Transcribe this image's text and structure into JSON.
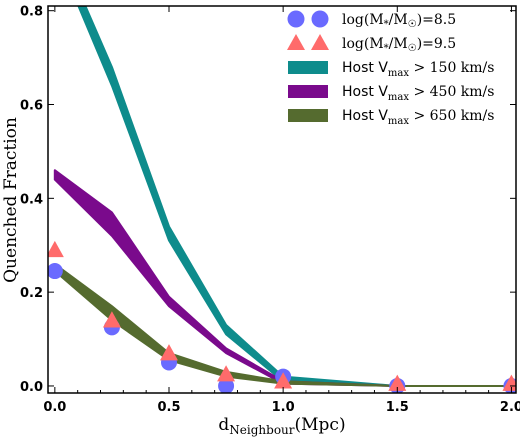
{
  "chart_data": {
    "type": "line",
    "title": "",
    "xlabel": {
      "main": "d",
      "sub": "Neighbour",
      "unit": "(Mpc)"
    },
    "ylabel": "Quenched Fraction",
    "xlim": [
      -0.03,
      2.02
    ],
    "ylim": [
      -0.015,
      0.81
    ],
    "xticks": [
      0.0,
      0.5,
      1.0,
      1.5,
      2.0
    ],
    "xtick_labels": [
      "0.0",
      "0.5",
      "1.0",
      "1.5",
      "2.0"
    ],
    "yticks": [
      0.0,
      0.2,
      0.4,
      0.6,
      0.8
    ],
    "ytick_labels": [
      "0.0",
      "0.2",
      "0.4",
      "0.6",
      "0.8"
    ],
    "grid": false,
    "legend_position": "top-right",
    "bands": [
      {
        "name": "Host V_max > 150 km/s",
        "color": "#0e8c8c",
        "x": [
          0.0,
          0.25,
          0.5,
          0.75,
          1.0,
          1.5,
          2.0
        ],
        "lower": [
          0.93,
          0.64,
          0.31,
          0.11,
          0.01,
          0.0,
          0.0
        ],
        "upper": [
          0.96,
          0.68,
          0.34,
          0.13,
          0.02,
          0.0,
          0.0
        ]
      },
      {
        "name": "Host V_max > 450 km/s",
        "color": "#7a0a8c",
        "x": [
          0.0,
          0.25,
          0.5,
          0.75,
          1.0,
          1.5,
          2.0
        ],
        "lower": [
          0.44,
          0.32,
          0.17,
          0.07,
          0.005,
          0.0,
          0.0
        ],
        "upper": [
          0.46,
          0.37,
          0.19,
          0.08,
          0.01,
          0.0,
          0.0
        ]
      },
      {
        "name": "Host V_max > 650 km/s",
        "color": "#556b2f",
        "x": [
          0.0,
          0.25,
          0.5,
          0.75,
          1.0,
          1.5,
          2.0
        ],
        "lower": [
          0.245,
          0.14,
          0.055,
          0.02,
          0.005,
          0.0,
          0.0
        ],
        "upper": [
          0.26,
          0.17,
          0.07,
          0.03,
          0.01,
          0.0,
          0.0
        ]
      }
    ],
    "markers": [
      {
        "name": "log(M*/M☉)=8.5",
        "shape": "circle",
        "color": "#6a6aff",
        "x": [
          0.0,
          0.25,
          0.5,
          0.75,
          1.0,
          1.5,
          2.0
        ],
        "y": [
          0.245,
          0.125,
          0.05,
          0.0,
          0.02,
          0.0,
          0.0
        ]
      },
      {
        "name": "log(M*/M☉)=9.5",
        "shape": "triangle",
        "color": "#ff6b6b",
        "x": [
          0.0,
          0.25,
          0.5,
          0.75,
          1.0,
          1.5,
          2.0
        ],
        "y": [
          0.29,
          0.14,
          0.07,
          0.025,
          0.01,
          0.005,
          0.005
        ]
      }
    ],
    "legend": [
      {
        "shape": "circle",
        "color": "#6a6aff",
        "parts": [
          "log(M",
          "*",
          "/M",
          "☉",
          ")=8.5"
        ]
      },
      {
        "shape": "triangle",
        "color": "#ff6b6b",
        "parts": [
          "log(M",
          "*",
          "/M",
          "☉",
          ")=9.5"
        ]
      },
      {
        "shape": "band",
        "color": "#0e8c8c",
        "prefix": "Host V",
        "sub": "max",
        "suffix": " > 150 km/s"
      },
      {
        "shape": "band",
        "color": "#7a0a8c",
        "prefix": "Host V",
        "sub": "max",
        "suffix": " > 450 km/s"
      },
      {
        "shape": "band",
        "color": "#556b2f",
        "prefix": "Host V",
        "sub": "max",
        "suffix": " > 650 km/s"
      }
    ]
  }
}
